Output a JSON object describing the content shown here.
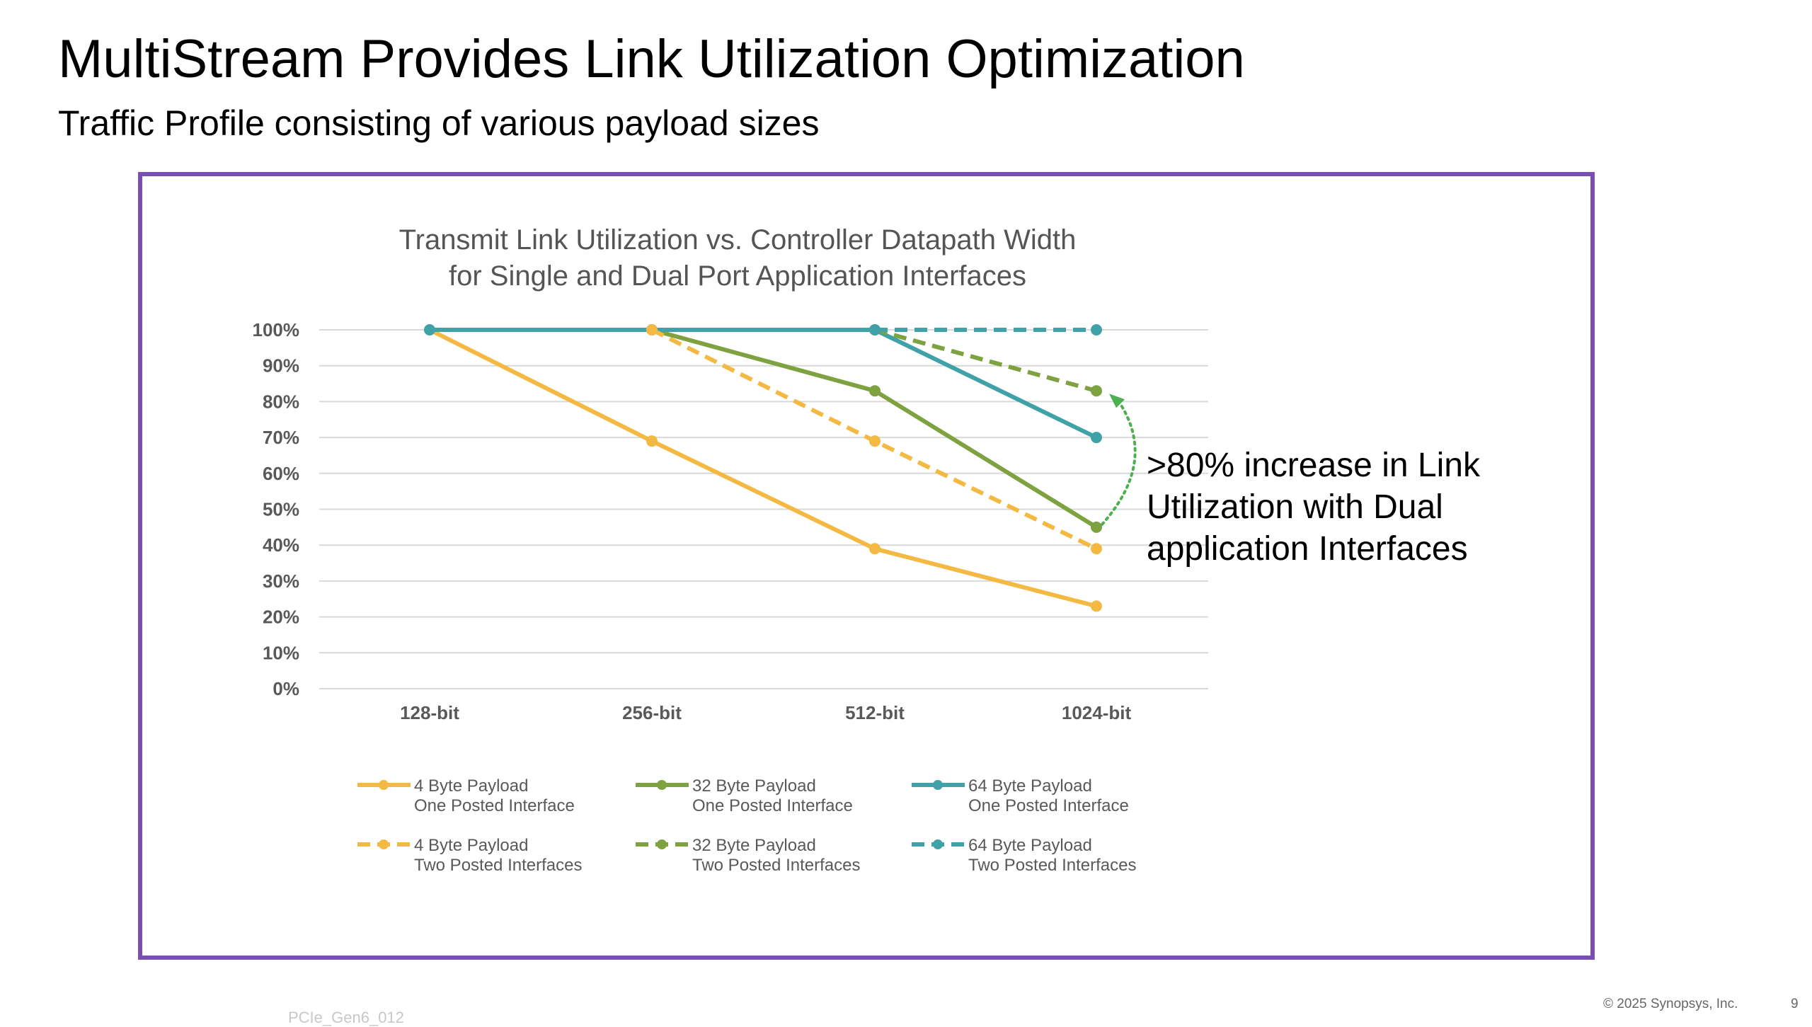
{
  "slide": {
    "title": "MultiStream Provides Link Utilization Optimization",
    "subtitle": "Traffic Profile consisting of various payload sizes",
    "annotation": ">80% increase in Link Utilization with Dual application Interfaces",
    "footer_left": "PCIe_Gen6_012",
    "copyright": "© 2025 Synopsys, Inc.",
    "page_number": "9",
    "frame_color": "#7a4fb5"
  },
  "chart_data": {
    "type": "line",
    "title_lines": [
      "Transmit Link Utilization vs. Controller Datapath Width",
      "for Single and Dual Port Application Interfaces"
    ],
    "categories": [
      "128-bit",
      "256-bit",
      "512-bit",
      "1024-bit"
    ],
    "yticks": [
      "0%",
      "10%",
      "20%",
      "30%",
      "40%",
      "50%",
      "60%",
      "70%",
      "80%",
      "90%",
      "100%"
    ],
    "ylim": [
      0,
      100
    ],
    "grid": true,
    "legend_placement": "bottom",
    "series": [
      {
        "name": "4 Byte Payload",
        "name2": "One Posted Interface",
        "color": "#f4b942",
        "dashed": false,
        "values": [
          100,
          69,
          39,
          23
        ]
      },
      {
        "name": "32 Byte Payload",
        "name2": "One Posted Interface",
        "color": "#7da23f",
        "dashed": false,
        "values": [
          null,
          100,
          83,
          45
        ]
      },
      {
        "name": "64 Byte Payload",
        "name2": "One Posted Interface",
        "color": "#3fa2a8",
        "dashed": false,
        "values": [
          100,
          100,
          100,
          70
        ]
      },
      {
        "name": "4 Byte Payload",
        "name2": "Two Posted Interfaces",
        "color": "#f4b942",
        "dashed": true,
        "values": [
          null,
          100,
          69,
          39
        ]
      },
      {
        "name": "32 Byte Payload",
        "name2": "Two Posted Interfaces",
        "color": "#7da23f",
        "dashed": true,
        "values": [
          null,
          null,
          100,
          83
        ]
      },
      {
        "name": "64 Byte Payload",
        "name2": "Two Posted Interfaces",
        "color": "#3fa2a8",
        "dashed": true,
        "values": [
          null,
          null,
          100,
          100
        ]
      }
    ],
    "annotation_arrow": {
      "from": [
        "1024-bit",
        45
      ],
      "to": [
        "1024-bit",
        83
      ],
      "color": "#4caf50"
    }
  }
}
